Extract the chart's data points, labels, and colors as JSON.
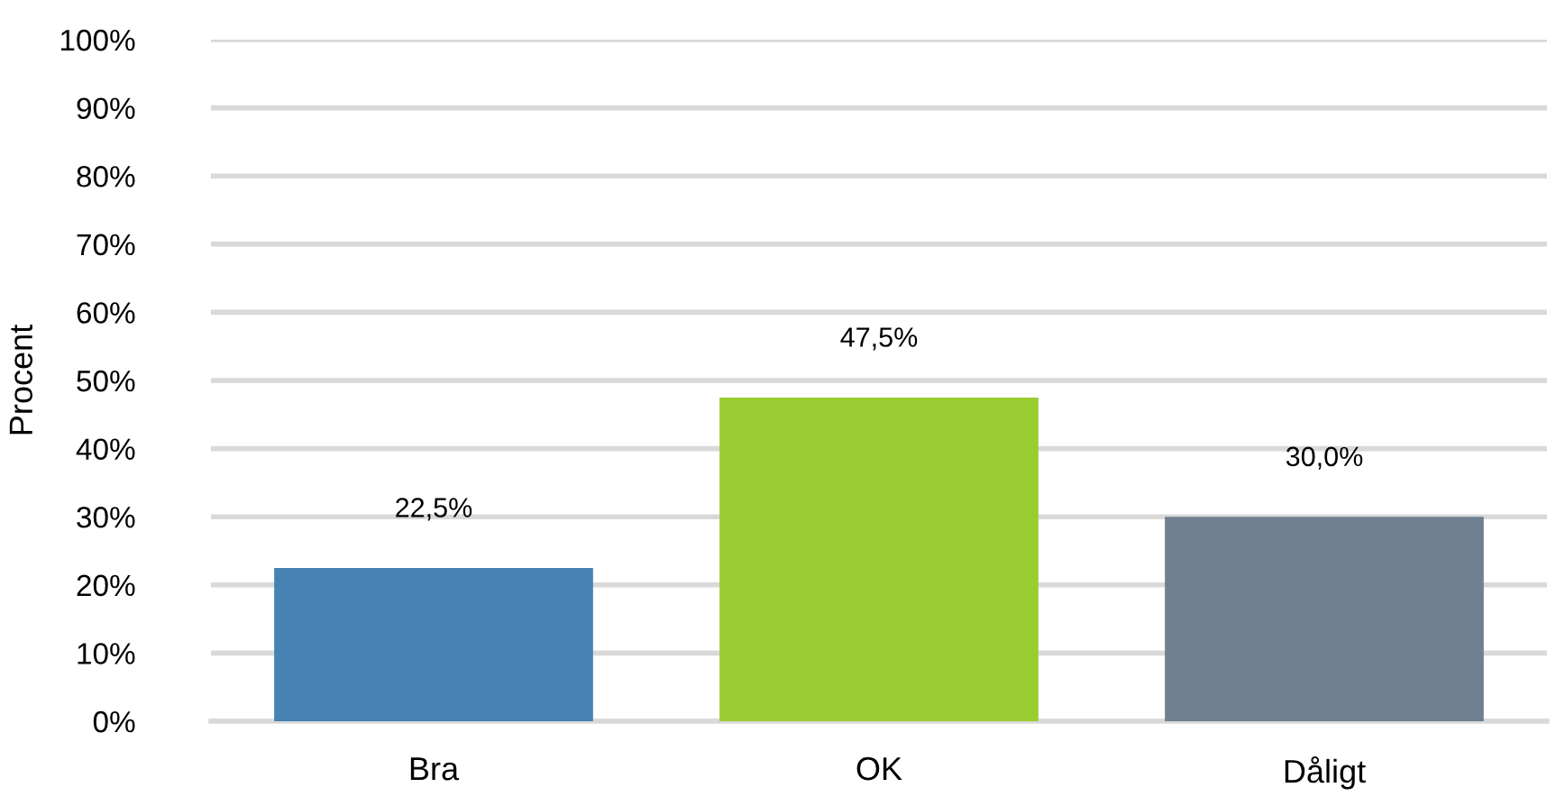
{
  "chart_data": {
    "type": "bar",
    "ylabel": "Procent",
    "categories": [
      "Bra",
      "OK",
      "Dåligt"
    ],
    "values": [
      22.5,
      47.5,
      30.0
    ],
    "colors": [
      "#4682b4",
      "#9acd32",
      "#708090"
    ],
    "value_labels": [
      "22,5%",
      "47,5%",
      "30,0%"
    ],
    "ylim": [
      0,
      100
    ],
    "yticks": [
      {
        "value": 0,
        "label": "0%"
      },
      {
        "value": 10,
        "label": "10%"
      },
      {
        "value": 20,
        "label": "20%"
      },
      {
        "value": 30,
        "label": "30%"
      },
      {
        "value": 40,
        "label": "40%"
      },
      {
        "value": 50,
        "label": "50%"
      },
      {
        "value": 60,
        "label": "60%"
      },
      {
        "value": 70,
        "label": "70%"
      },
      {
        "value": 80,
        "label": "80%"
      },
      {
        "value": 90,
        "label": "90%"
      },
      {
        "value": 100,
        "label": "100%"
      }
    ],
    "grid": "y"
  }
}
